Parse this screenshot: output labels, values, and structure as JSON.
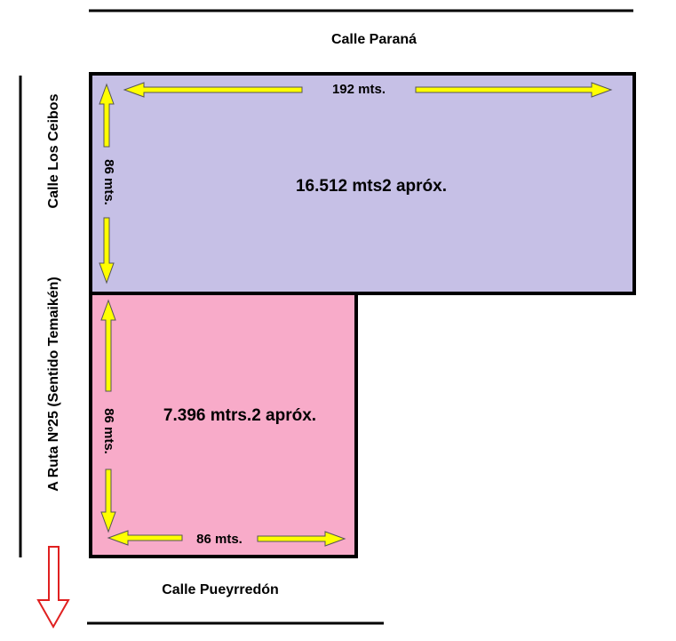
{
  "streets": {
    "top": "Calle Paraná",
    "left": "Calle Los Ceibos",
    "route": "A Ruta Nº25 (Sentido Temaikén)",
    "bottom": "Calle Pueyrredón"
  },
  "lots": [
    {
      "width_label": "192 mts.",
      "height_label": "86 mts.",
      "area": "16.512 mts2 apróx."
    },
    {
      "width_label": "86 mts.",
      "height_label": "86 mts.",
      "area": "7.396 mtrs.2 apróx."
    }
  ]
}
